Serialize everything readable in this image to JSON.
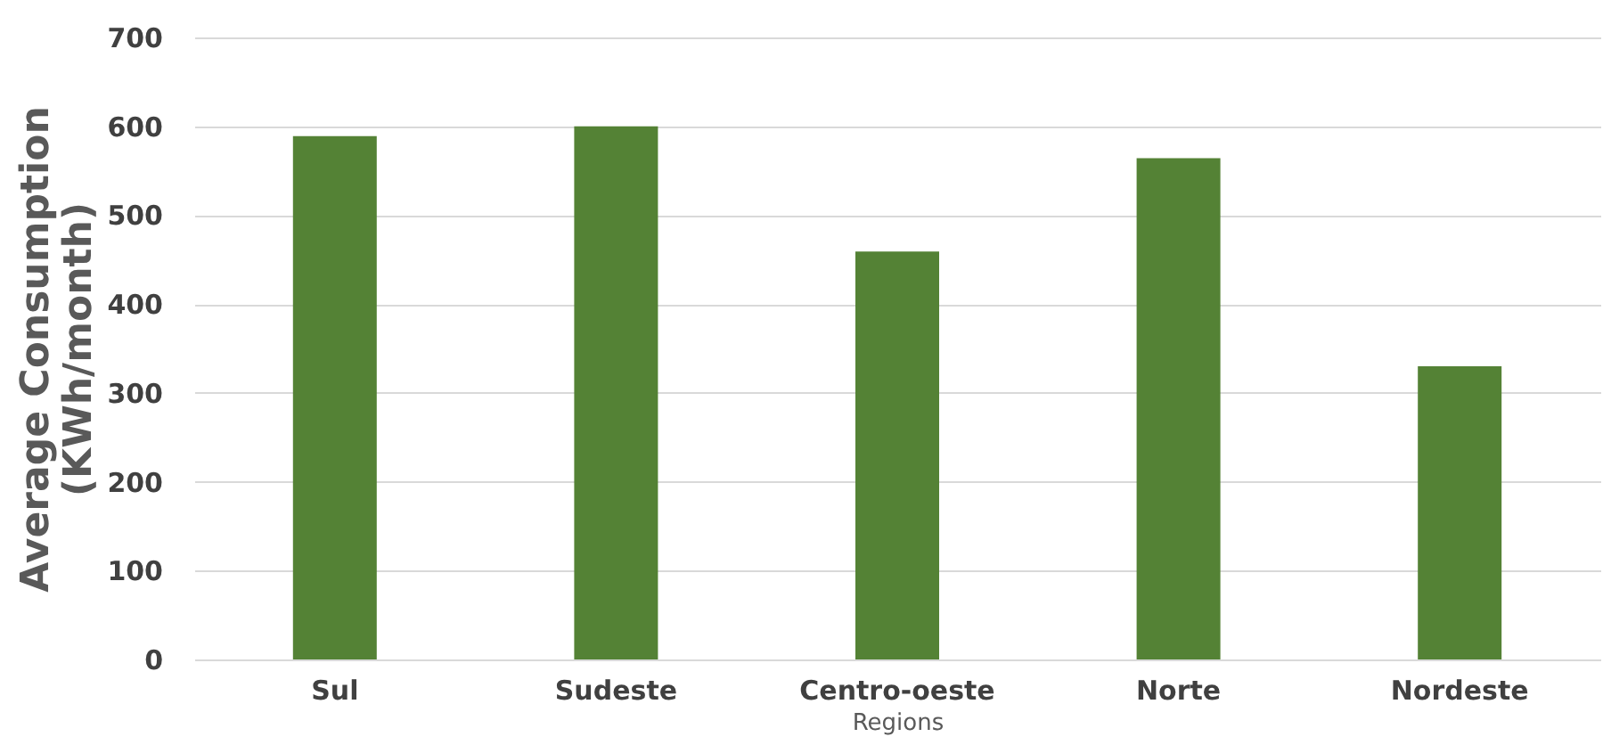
{
  "chart_data": {
    "type": "bar",
    "xlabel": "Regions",
    "ylabel": "Average Consumption (KWh/month)",
    "categories": [
      "Sul",
      "Sudeste",
      "Centro-oeste",
      "Norte",
      "Nordeste"
    ],
    "values": [
      589,
      600,
      459,
      564,
      330
    ],
    "color": "#548235",
    "ylim": [
      0,
      700
    ],
    "yticks": [
      0,
      100,
      200,
      300,
      400,
      500,
      600,
      700
    ],
    "grid": "y"
  }
}
